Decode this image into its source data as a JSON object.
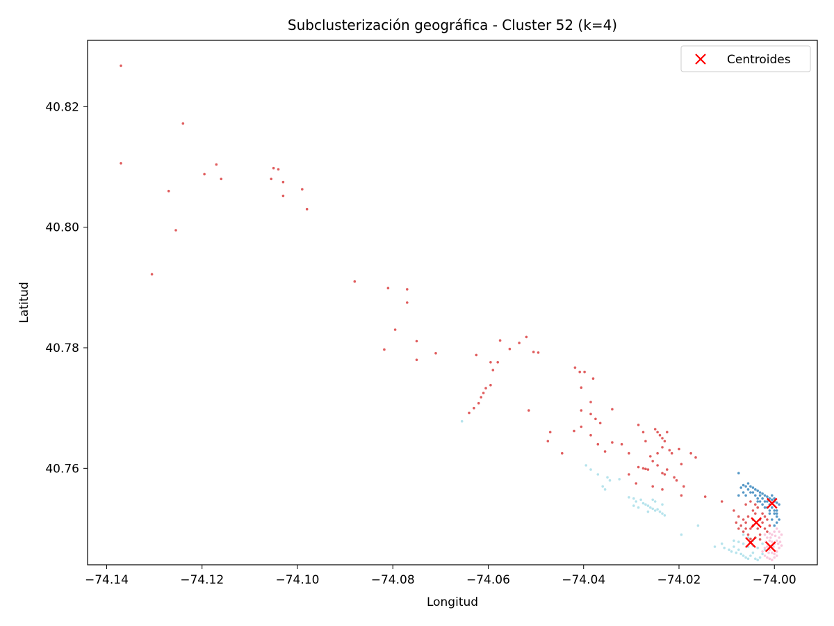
{
  "chart_data": {
    "type": "scatter",
    "title": "Subclusterización geográfica - Cluster 52 (k=4)",
    "xlabel": "Longitud",
    "ylabel": "Latitud",
    "xlim": [
      -74.144,
      -73.991
    ],
    "ylim": [
      40.744,
      40.831
    ],
    "xticks": [
      -74.14,
      -74.12,
      -74.1,
      -74.08,
      -74.06,
      -74.04,
      -74.02,
      -74.0
    ],
    "xtick_labels": [
      "−74.14",
      "−74.12",
      "−74.10",
      "−74.08",
      "−74.06",
      "−74.04",
      "−74.02",
      "−74.00"
    ],
    "yticks": [
      40.76,
      40.78,
      40.8,
      40.82
    ],
    "ytick_labels": [
      "40.76",
      "40.78",
      "40.80",
      "40.82"
    ],
    "grid": false,
    "legend": {
      "placement": "top-right",
      "entries": [
        {
          "label": "Centroides",
          "marker": "x",
          "color": "#ff0000"
        }
      ]
    },
    "series": [
      {
        "color": "#d62728",
        "points": [
          [
            -74.137,
            40.8268
          ],
          [
            -74.137,
            40.8106
          ],
          [
            -74.124,
            40.8172
          ],
          [
            -74.117,
            40.8104
          ],
          [
            -74.1195,
            40.8088
          ],
          [
            -74.116,
            40.808
          ],
          [
            -74.127,
            40.806
          ],
          [
            -74.1255,
            40.7995
          ],
          [
            -74.1305,
            40.7922
          ],
          [
            -74.105,
            40.8098
          ],
          [
            -74.104,
            40.8096
          ],
          [
            -74.1055,
            40.808
          ],
          [
            -74.103,
            40.8075
          ],
          [
            -74.103,
            40.8052
          ],
          [
            -74.099,
            40.8063
          ],
          [
            -74.098,
            40.803
          ],
          [
            -74.088,
            40.791
          ],
          [
            -74.081,
            40.7899
          ],
          [
            -74.077,
            40.7897
          ],
          [
            -74.077,
            40.7875
          ],
          [
            -74.0795,
            40.783
          ],
          [
            -74.0818,
            40.7797
          ],
          [
            -74.075,
            40.7811
          ],
          [
            -74.075,
            40.778
          ],
          [
            -74.071,
            40.7791
          ],
          [
            -74.064,
            40.7692
          ],
          [
            -74.063,
            40.77
          ],
          [
            -74.062,
            40.7708
          ],
          [
            -74.0615,
            40.7718
          ],
          [
            -74.061,
            40.7725
          ],
          [
            -74.0605,
            40.7733
          ],
          [
            -74.0625,
            40.7788
          ],
          [
            -74.059,
            40.7763
          ],
          [
            -74.0595,
            40.7776
          ],
          [
            -74.058,
            40.7776
          ],
          [
            -74.0575,
            40.7812
          ],
          [
            -74.0555,
            40.7798
          ],
          [
            -74.0535,
            40.7808
          ],
          [
            -74.052,
            40.7818
          ],
          [
            -74.0505,
            40.7793
          ],
          [
            -74.0495,
            40.7792
          ],
          [
            -74.0595,
            40.7738
          ],
          [
            -74.0515,
            40.7696
          ],
          [
            -74.0418,
            40.7767
          ],
          [
            -74.0408,
            40.776
          ],
          [
            -74.0398,
            40.776
          ],
          [
            -74.038,
            40.7749
          ],
          [
            -74.0405,
            40.7734
          ],
          [
            -74.0385,
            40.771
          ],
          [
            -74.0405,
            40.7696
          ],
          [
            -74.0385,
            40.769
          ],
          [
            -74.0375,
            40.7682
          ],
          [
            -74.0365,
            40.7675
          ],
          [
            -74.034,
            40.7698
          ],
          [
            -74.0405,
            40.7669
          ],
          [
            -74.047,
            40.766
          ],
          [
            -74.0475,
            40.7645
          ],
          [
            -74.0445,
            40.7625
          ],
          [
            -74.042,
            40.7662
          ],
          [
            -74.0385,
            40.7655
          ],
          [
            -74.037,
            40.764
          ],
          [
            -74.0355,
            40.7628
          ],
          [
            -74.034,
            40.7643
          ],
          [
            -74.032,
            40.764
          ],
          [
            -74.0305,
            40.7625
          ],
          [
            -74.0285,
            40.7672
          ],
          [
            -74.0275,
            40.766
          ],
          [
            -74.027,
            40.7645
          ],
          [
            -74.026,
            40.762
          ],
          [
            -74.025,
            40.7665
          ],
          [
            -74.0245,
            40.766
          ],
          [
            -74.024,
            40.7655
          ],
          [
            -74.0235,
            40.765
          ],
          [
            -74.023,
            40.7645
          ],
          [
            -74.0235,
            40.7635
          ],
          [
            -74.0245,
            40.7625
          ],
          [
            -74.0225,
            40.766
          ],
          [
            -74.022,
            40.763
          ],
          [
            -74.0215,
            40.7625
          ],
          [
            -74.02,
            40.7632
          ],
          [
            -74.0195,
            40.7607
          ],
          [
            -74.0205,
            40.758
          ],
          [
            -74.019,
            40.757
          ],
          [
            -74.0175,
            40.7625
          ],
          [
            -74.0165,
            40.7618
          ],
          [
            -74.0285,
            40.7602
          ],
          [
            -74.0275,
            40.76
          ],
          [
            -74.027,
            40.7599
          ],
          [
            -74.0265,
            40.7598
          ],
          [
            -74.0225,
            40.7598
          ],
          [
            -74.0235,
            40.7592
          ],
          [
            -74.023,
            40.759
          ],
          [
            -74.0245,
            40.7605
          ],
          [
            -74.0255,
            40.7612
          ],
          [
            -74.029,
            40.7575
          ],
          [
            -74.0305,
            40.759
          ],
          [
            -74.0255,
            40.757
          ],
          [
            -74.0235,
            40.7565
          ],
          [
            -74.021,
            40.7585
          ],
          [
            -74.0195,
            40.7555
          ],
          [
            -74.0145,
            40.7553
          ],
          [
            -74.011,
            40.7545
          ],
          [
            -74.0085,
            40.753
          ],
          [
            -74.0075,
            40.752
          ],
          [
            -74.007,
            40.7505
          ],
          [
            -74.0065,
            40.7495
          ],
          [
            -74.006,
            40.751
          ],
          [
            -74.0055,
            40.749
          ],
          [
            -74.005,
            40.75
          ],
          [
            -74.0045,
            40.7515
          ],
          [
            -74.004,
            40.7525
          ],
          [
            -74.0035,
            40.75
          ],
          [
            -74.003,
            40.749
          ],
          [
            -74.0025,
            40.751
          ],
          [
            -74.002,
            40.75
          ],
          [
            -74.0015,
            40.7495
          ],
          [
            -74.0045,
            40.753
          ],
          [
            -74.0055,
            40.752
          ],
          [
            -74.0065,
            40.7515
          ],
          [
            -74.0035,
            40.7535
          ],
          [
            -74.0025,
            40.7525
          ],
          [
            -74.0015,
            40.7515
          ],
          [
            -74.005,
            40.7483
          ],
          [
            -74.004,
            40.7485
          ],
          [
            -74.003,
            40.7482
          ],
          [
            -74.0075,
            40.75
          ],
          [
            -74.008,
            40.751
          ],
          [
            -74.006,
            40.754
          ],
          [
            -74.005,
            40.7545
          ],
          [
            -74.004,
            40.754
          ],
          [
            -74.002,
            40.752
          ],
          [
            -74.001,
            40.7505
          ],
          [
            -74.003,
            40.7515
          ],
          [
            -74.0045,
            40.7505
          ],
          [
            -74.006,
            40.75
          ]
        ]
      },
      {
        "color": "#1f77b4",
        "points": [
          [
            -74.0055,
            40.7575
          ],
          [
            -74.005,
            40.757
          ],
          [
            -74.0045,
            40.7568
          ],
          [
            -74.004,
            40.7565
          ],
          [
            -74.0035,
            40.7563
          ],
          [
            -74.003,
            40.756
          ],
          [
            -74.0025,
            40.7558
          ],
          [
            -74.002,
            40.7555
          ],
          [
            -74.0015,
            40.7553
          ],
          [
            -74.001,
            40.755
          ],
          [
            -74.0005,
            40.7548
          ],
          [
            -74.0,
            40.7545
          ],
          [
            -73.9995,
            40.7543
          ],
          [
            -73.999,
            40.754
          ],
          [
            -73.9995,
            40.753
          ],
          [
            -74.0,
            40.7525
          ],
          [
            -73.9995,
            40.752
          ],
          [
            -73.999,
            40.7515
          ],
          [
            -73.9995,
            40.751
          ],
          [
            -74.0,
            40.7505
          ],
          [
            -74.0005,
            40.7515
          ],
          [
            -74.001,
            40.7525
          ],
          [
            -74.0015,
            40.7535
          ],
          [
            -74.002,
            40.7545
          ],
          [
            -74.0025,
            40.755
          ],
          [
            -74.003,
            40.7555
          ],
          [
            -74.0035,
            40.755
          ],
          [
            -74.004,
            40.7555
          ],
          [
            -74.0045,
            40.756
          ],
          [
            -74.005,
            40.756
          ],
          [
            -74.0055,
            40.7565
          ],
          [
            -74.006,
            40.757
          ],
          [
            -74.0065,
            40.7572
          ],
          [
            -74.007,
            40.7568
          ],
          [
            -74.0075,
            40.7555
          ],
          [
            -74.006,
            40.7555
          ],
          [
            -74.0065,
            40.756
          ],
          [
            -74.0015,
            40.7545
          ],
          [
            -74.001,
            40.754
          ],
          [
            -74.0005,
            40.7535
          ],
          [
            -74.0,
            40.753
          ],
          [
            -73.9995,
            40.7525
          ],
          [
            -74.0025,
            40.754
          ],
          [
            -74.002,
            40.7535
          ],
          [
            -74.003,
            40.7545
          ],
          [
            -74.0075,
            40.7592
          ],
          [
            -74.0005,
            40.7555
          ],
          [
            -74.0,
            40.755
          ],
          [
            -74.0035,
            40.7545
          ],
          [
            -74.001,
            40.753
          ]
        ]
      },
      {
        "color": "#9edae5",
        "points": [
          [
            -74.0395,
            40.7605
          ],
          [
            -74.0385,
            40.7598
          ],
          [
            -74.037,
            40.759
          ],
          [
            -74.035,
            40.7585
          ],
          [
            -74.0345,
            40.758
          ],
          [
            -74.0325,
            40.7582
          ],
          [
            -74.036,
            40.757
          ],
          [
            -74.0355,
            40.7565
          ],
          [
            -74.0305,
            40.7552
          ],
          [
            -74.0295,
            40.755
          ],
          [
            -74.029,
            40.7545
          ],
          [
            -74.028,
            40.7548
          ],
          [
            -74.0275,
            40.7542
          ],
          [
            -74.027,
            40.754
          ],
          [
            -74.0265,
            40.7538
          ],
          [
            -74.026,
            40.7535
          ],
          [
            -74.0255,
            40.7533
          ],
          [
            -74.025,
            40.753
          ],
          [
            -74.0245,
            40.7532
          ],
          [
            -74.024,
            40.7528
          ],
          [
            -74.0235,
            40.7525
          ],
          [
            -74.023,
            40.7522
          ],
          [
            -74.0295,
            40.7538
          ],
          [
            -74.0285,
            40.7535
          ],
          [
            -74.0265,
            40.7528
          ],
          [
            -74.0255,
            40.7548
          ],
          [
            -74.025,
            40.7545
          ],
          [
            -74.0235,
            40.754
          ],
          [
            -74.0655,
            40.7678
          ],
          [
            -74.0195,
            40.749
          ],
          [
            -74.016,
            40.7505
          ],
          [
            -74.0125,
            40.747
          ],
          [
            -74.011,
            40.7475
          ],
          [
            -74.0105,
            40.7468
          ],
          [
            -74.0095,
            40.7465
          ],
          [
            -74.009,
            40.7462
          ],
          [
            -74.0085,
            40.747
          ],
          [
            -74.008,
            40.746
          ],
          [
            -74.0075,
            40.7465
          ],
          [
            -74.007,
            40.7458
          ],
          [
            -74.0065,
            40.7455
          ],
          [
            -74.006,
            40.7452
          ],
          [
            -74.0055,
            40.745
          ],
          [
            -74.005,
            40.7455
          ],
          [
            -74.0045,
            40.746
          ],
          [
            -74.004,
            40.745
          ],
          [
            -74.0035,
            40.7448
          ],
          [
            -74.003,
            40.7452
          ],
          [
            -74.0025,
            40.7458
          ],
          [
            -74.002,
            40.7465
          ],
          [
            -74.0085,
            40.748
          ],
          [
            -74.0075,
            40.7478
          ],
          [
            -74.0065,
            40.7475
          ],
          [
            -74.0055,
            40.747
          ],
          [
            -74.0045,
            40.7472
          ],
          [
            -74.0035,
            40.7468
          ],
          [
            -74.0025,
            40.7475
          ],
          [
            -74.0065,
            40.749
          ],
          [
            -74.0055,
            40.7485
          ],
          [
            -74.0045,
            40.748
          ]
        ]
      },
      {
        "color": "#f7b6d2",
        "points": [
          [
            -74.002,
            40.749
          ],
          [
            -74.0015,
            40.7485
          ],
          [
            -74.001,
            40.748
          ],
          [
            -74.0005,
            40.7478
          ],
          [
            -74.0,
            40.7475
          ],
          [
            -73.9995,
            40.748
          ],
          [
            -73.999,
            40.7485
          ],
          [
            -73.9985,
            40.749
          ],
          [
            -73.999,
            40.7495
          ],
          [
            -73.9995,
            40.75
          ],
          [
            -74.0,
            40.7495
          ],
          [
            -74.0005,
            40.749
          ],
          [
            -74.001,
            40.7492
          ],
          [
            -74.0015,
            40.747
          ],
          [
            -74.001,
            40.7465
          ],
          [
            -74.0005,
            40.746
          ],
          [
            -74.0,
            40.7458
          ],
          [
            -73.9995,
            40.7462
          ],
          [
            -73.999,
            40.7468
          ],
          [
            -73.9985,
            40.7472
          ],
          [
            -73.9988,
            40.7478
          ],
          [
            -74.002,
            40.7468
          ],
          [
            -74.0025,
            40.7462
          ],
          [
            -74.002,
            40.7455
          ],
          [
            -74.0015,
            40.7452
          ],
          [
            -74.001,
            40.745
          ],
          [
            -74.0005,
            40.7448
          ],
          [
            -74.0,
            40.7452
          ],
          [
            -73.9995,
            40.7455
          ],
          [
            -74.0018,
            40.7478
          ],
          [
            -74.0008,
            40.7485
          ],
          [
            -73.9998,
            40.7488
          ],
          [
            -73.9992,
            40.7475
          ],
          [
            -74.0002,
            40.747
          ],
          [
            -74.0012,
            40.746
          ]
        ]
      }
    ],
    "centroids": [
      [
        -74.0005,
        40.7542
      ],
      [
        -74.0038,
        40.751
      ],
      [
        -74.005,
        40.7477
      ],
      [
        -74.0008,
        40.747
      ]
    ]
  }
}
